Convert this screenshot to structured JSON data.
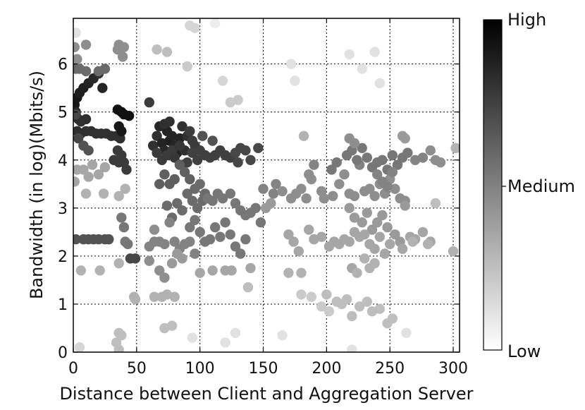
{
  "chart_data": {
    "type": "scatter",
    "xlabel": "Distance between Client and Aggregation Server",
    "ylabel": "Bandwidth (in log)(Mbits/s)",
    "xlim": [
      0,
      305
    ],
    "ylim": [
      0,
      6.95
    ],
    "x_ticks": [
      0,
      50,
      100,
      150,
      200,
      250,
      300
    ],
    "y_ticks": [
      0,
      1,
      2,
      3,
      4,
      5,
      6
    ],
    "grid": true,
    "colorbar": {
      "labels": [
        "High",
        "Medium",
        "Low"
      ],
      "low_color": "#ffffff",
      "high_color": "#000000"
    },
    "points": [
      [
        1,
        5.15,
        0.95
      ],
      [
        3,
        5.3,
        0.95
      ],
      [
        5,
        5.4,
        0.92
      ],
      [
        8,
        5.5,
        0.92
      ],
      [
        12,
        5.6,
        0.9
      ],
      [
        16,
        5.7,
        0.88
      ],
      [
        20,
        5.8,
        0.85
      ],
      [
        23,
        5.5,
        0.9
      ],
      [
        2,
        5.0,
        0.88
      ],
      [
        4,
        4.85,
        0.85
      ],
      [
        6,
        4.8,
        0.85
      ],
      [
        10,
        4.85,
        0.85
      ],
      [
        3,
        4.6,
        0.85
      ],
      [
        6,
        4.55,
        0.85
      ],
      [
        10,
        4.6,
        0.85
      ],
      [
        14,
        4.6,
        0.85
      ],
      [
        18,
        4.55,
        0.85
      ],
      [
        22,
        4.55,
        0.85
      ],
      [
        26,
        4.55,
        0.85
      ],
      [
        30,
        4.5,
        0.85
      ],
      [
        34,
        4.5,
        0.85
      ],
      [
        37,
        4.45,
        0.85
      ],
      [
        35,
        5.05,
        0.98
      ],
      [
        38,
        5.0,
        0.98
      ],
      [
        40,
        4.95,
        0.98
      ],
      [
        44,
        4.92,
        0.98
      ],
      [
        36,
        4.7,
        0.95
      ],
      [
        38,
        4.6,
        0.95
      ],
      [
        2,
        5.9,
        0.6
      ],
      [
        5,
        5.9,
        0.6
      ],
      [
        10,
        5.85,
        0.6
      ],
      [
        20,
        5.85,
        0.6
      ],
      [
        25,
        5.9,
        0.6
      ],
      [
        2,
        4.95,
        0.75
      ],
      [
        4,
        4.45,
        0.75
      ],
      [
        8,
        4.3,
        0.7
      ],
      [
        12,
        4.2,
        0.7
      ],
      [
        3,
        6.1,
        0.45
      ],
      [
        1,
        6.35,
        0.45
      ],
      [
        10,
        6.4,
        0.45
      ],
      [
        35,
        6.3,
        0.45
      ],
      [
        36,
        6.4,
        0.45
      ],
      [
        40,
        6.35,
        0.45
      ],
      [
        39,
        6.15,
        0.45
      ],
      [
        32,
        4.0,
        0.8
      ],
      [
        35,
        4.2,
        0.8
      ],
      [
        38,
        4.1,
        0.8
      ],
      [
        40,
        3.95,
        0.8
      ],
      [
        42,
        3.8,
        0.8
      ],
      [
        36,
        3.95,
        0.8
      ],
      [
        1,
        3.55,
        0.35
      ],
      [
        3,
        3.8,
        0.35
      ],
      [
        8,
        3.8,
        0.35
      ],
      [
        12,
        3.65,
        0.35
      ],
      [
        15,
        3.9,
        0.35
      ],
      [
        20,
        3.7,
        0.35
      ],
      [
        25,
        3.85,
        0.35
      ],
      [
        10,
        3.3,
        0.3
      ],
      [
        24,
        3.3,
        0.3
      ],
      [
        36,
        3.25,
        0.3
      ],
      [
        41,
        3.4,
        0.3
      ],
      [
        38,
        2.8,
        0.55
      ],
      [
        40,
        2.6,
        0.55
      ],
      [
        41,
        2.3,
        0.55
      ],
      [
        43,
        2.25,
        0.55
      ],
      [
        45,
        1.95,
        0.75
      ],
      [
        49,
        1.95,
        0.75
      ],
      [
        2,
        2.35,
        0.7
      ],
      [
        8,
        2.35,
        0.7
      ],
      [
        12,
        2.35,
        0.7
      ],
      [
        16,
        2.35,
        0.7
      ],
      [
        20,
        2.35,
        0.7
      ],
      [
        25,
        2.35,
        0.7
      ],
      [
        28,
        2.35,
        0.7
      ],
      [
        6,
        1.7,
        0.3
      ],
      [
        21,
        1.7,
        0.3
      ],
      [
        36,
        1.85,
        0.3
      ],
      [
        49,
        1.1,
        0.3
      ],
      [
        48,
        1.15,
        0.3
      ],
      [
        36,
        0.4,
        0.25
      ],
      [
        38,
        0.35,
        0.25
      ],
      [
        34,
        0.2,
        0.25
      ],
      [
        36,
        0.05,
        0.25
      ],
      [
        5,
        0.1,
        0.15
      ],
      [
        60,
        5.2,
        0.8
      ],
      [
        63,
        4.3,
        0.85
      ],
      [
        66,
        4.5,
        0.85
      ],
      [
        68,
        4.7,
        0.88
      ],
      [
        70,
        4.35,
        0.9
      ],
      [
        72,
        4.2,
        0.88
      ],
      [
        74,
        4.6,
        0.9
      ],
      [
        76,
        4.4,
        0.92
      ],
      [
        78,
        4.5,
        0.9
      ],
      [
        80,
        4.3,
        0.9
      ],
      [
        82,
        4.15,
        0.9
      ],
      [
        84,
        4.45,
        0.9
      ],
      [
        86,
        4.7,
        0.85
      ],
      [
        88,
        4.2,
        0.85
      ],
      [
        90,
        4.5,
        0.85
      ],
      [
        92,
        4.6,
        0.8
      ],
      [
        94,
        4.4,
        0.8
      ],
      [
        96,
        4.3,
        0.8
      ],
      [
        66,
        4.15,
        0.8
      ],
      [
        70,
        4.0,
        0.8
      ],
      [
        74,
        4.1,
        0.8
      ],
      [
        78,
        4.2,
        0.8
      ],
      [
        72,
        4.75,
        0.85
      ],
      [
        76,
        4.8,
        0.85
      ],
      [
        80,
        4.05,
        0.82
      ],
      [
        84,
        4.3,
        0.82
      ],
      [
        86,
        3.9,
        0.78
      ],
      [
        90,
        3.95,
        0.78
      ],
      [
        94,
        4.15,
        0.78
      ],
      [
        98,
        4.0,
        0.78
      ],
      [
        100,
        4.2,
        0.78
      ],
      [
        104,
        4.1,
        0.78
      ],
      [
        108,
        4.05,
        0.78
      ],
      [
        112,
        4.1,
        0.78
      ],
      [
        116,
        4.2,
        0.78
      ],
      [
        120,
        4.1,
        0.78
      ],
      [
        124,
        4.05,
        0.78
      ],
      [
        128,
        4.15,
        0.75
      ],
      [
        132,
        4.25,
        0.75
      ],
      [
        136,
        4.2,
        0.75
      ],
      [
        140,
        4.0,
        0.75
      ],
      [
        146,
        4.25,
        0.75
      ],
      [
        130,
        3.95,
        0.75
      ],
      [
        102,
        4.5,
        0.7
      ],
      [
        110,
        4.4,
        0.7
      ],
      [
        68,
        3.5,
        0.65
      ],
      [
        72,
        3.7,
        0.65
      ],
      [
        76,
        3.5,
        0.65
      ],
      [
        80,
        3.6,
        0.65
      ],
      [
        84,
        3.9,
        0.65
      ],
      [
        88,
        3.75,
        0.65
      ],
      [
        92,
        3.6,
        0.65
      ],
      [
        96,
        3.4,
        0.6
      ],
      [
        100,
        3.5,
        0.6
      ],
      [
        104,
        3.3,
        0.6
      ],
      [
        90,
        3.3,
        0.6
      ],
      [
        94,
        3.15,
        0.6
      ],
      [
        98,
        3.0,
        0.6
      ],
      [
        102,
        3.15,
        0.6
      ],
      [
        106,
        3.2,
        0.55
      ],
      [
        110,
        3.15,
        0.55
      ],
      [
        114,
        3.3,
        0.55
      ],
      [
        118,
        3.2,
        0.55
      ],
      [
        124,
        3.3,
        0.55
      ],
      [
        128,
        3.1,
        0.55
      ],
      [
        132,
        2.95,
        0.55
      ],
      [
        136,
        2.85,
        0.55
      ],
      [
        140,
        2.9,
        0.55
      ],
      [
        144,
        3.0,
        0.55
      ],
      [
        148,
        2.7,
        0.55
      ],
      [
        86,
        2.95,
        0.6
      ],
      [
        82,
        3.1,
        0.6
      ],
      [
        78,
        2.8,
        0.6
      ],
      [
        74,
        3.05,
        0.6
      ],
      [
        92,
        2.6,
        0.55
      ],
      [
        96,
        2.75,
        0.55
      ],
      [
        100,
        2.5,
        0.55
      ],
      [
        104,
        2.3,
        0.55
      ],
      [
        108,
        2.35,
        0.55
      ],
      [
        112,
        2.6,
        0.55
      ],
      [
        116,
        2.4,
        0.55
      ],
      [
        120,
        2.7,
        0.55
      ],
      [
        124,
        2.45,
        0.55
      ],
      [
        128,
        2.2,
        0.55
      ],
      [
        132,
        2.05,
        0.55
      ],
      [
        136,
        2.35,
        0.55
      ],
      [
        60,
        2.2,
        0.5
      ],
      [
        64,
        2.3,
        0.5
      ],
      [
        68,
        2.3,
        0.5
      ],
      [
        72,
        2.25,
        0.5
      ],
      [
        76,
        2.7,
        0.5
      ],
      [
        80,
        2.3,
        0.5
      ],
      [
        84,
        2.15,
        0.5
      ],
      [
        88,
        2.25,
        0.5
      ],
      [
        92,
        2.3,
        0.5
      ],
      [
        96,
        2.05,
        0.5
      ],
      [
        64,
        2.55,
        0.45
      ],
      [
        60,
        1.9,
        0.45
      ],
      [
        68,
        1.7,
        0.45
      ],
      [
        72,
        1.55,
        0.45
      ],
      [
        78,
        1.85,
        0.4
      ],
      [
        82,
        2.05,
        0.4
      ],
      [
        86,
        1.95,
        0.4
      ],
      [
        100,
        1.65,
        0.35
      ],
      [
        110,
        1.7,
        0.35
      ],
      [
        120,
        1.7,
        0.35
      ],
      [
        125,
        1.7,
        0.35
      ],
      [
        140,
        1.75,
        0.35
      ],
      [
        170,
        1.65,
        0.3
      ],
      [
        180,
        1.65,
        0.3
      ],
      [
        64,
        1.15,
        0.3
      ],
      [
        70,
        1.15,
        0.3
      ],
      [
        74,
        1.2,
        0.3
      ],
      [
        80,
        1.15,
        0.3
      ],
      [
        72,
        0.5,
        0.25
      ],
      [
        78,
        0.55,
        0.25
      ],
      [
        138,
        1.35,
        0.25
      ],
      [
        66,
        6.3,
        0.25
      ],
      [
        74,
        6.25,
        0.25
      ],
      [
        92,
        6.8,
        0.15
      ],
      [
        96,
        6.75,
        0.15
      ],
      [
        90,
        5.95,
        0.2
      ],
      [
        118,
        5.65,
        0.15
      ],
      [
        124,
        5.2,
        0.2
      ],
      [
        130,
        5.25,
        0.2
      ],
      [
        172,
        6.0,
        0.1
      ],
      [
        218,
        6.2,
        0.1
      ],
      [
        238,
        6.25,
        0.1
      ],
      [
        228,
        5.9,
        0.1
      ],
      [
        242,
        5.6,
        0.1
      ],
      [
        175,
        5.65,
        0.1
      ],
      [
        112,
        6.85,
        0.05
      ],
      [
        2,
        6.65,
        0.1
      ],
      [
        94,
        0.3,
        0.1
      ],
      [
        120,
        0.2,
        0.1
      ],
      [
        128,
        0.4,
        0.1
      ],
      [
        165,
        0.35,
        0.1
      ],
      [
        220,
        0.05,
        0.1
      ],
      [
        263,
        0.4,
        0.1
      ],
      [
        150,
        3.4,
        0.5
      ],
      [
        158,
        3.3,
        0.5
      ],
      [
        160,
        3.5,
        0.5
      ],
      [
        165,
        3.35,
        0.45
      ],
      [
        172,
        3.2,
        0.45
      ],
      [
        176,
        3.3,
        0.45
      ],
      [
        180,
        3.4,
        0.45
      ],
      [
        184,
        3.2,
        0.45
      ],
      [
        186,
        3.7,
        0.45
      ],
      [
        188,
        3.6,
        0.45
      ],
      [
        190,
        3.9,
        0.5
      ],
      [
        196,
        3.35,
        0.45
      ],
      [
        198,
        3.2,
        0.45
      ],
      [
        205,
        3.25,
        0.45
      ],
      [
        210,
        3.5,
        0.45
      ],
      [
        214,
        3.7,
        0.45
      ],
      [
        218,
        3.3,
        0.45
      ],
      [
        222,
        3.25,
        0.45
      ],
      [
        226,
        3.9,
        0.5
      ],
      [
        230,
        3.35,
        0.45
      ],
      [
        234,
        3.4,
        0.45
      ],
      [
        238,
        3.25,
        0.45
      ],
      [
        242,
        3.5,
        0.45
      ],
      [
        246,
        3.3,
        0.45
      ],
      [
        250,
        3.6,
        0.45
      ],
      [
        254,
        3.4,
        0.45
      ],
      [
        258,
        3.2,
        0.45
      ],
      [
        262,
        3.15,
        0.45
      ],
      [
        204,
        3.8,
        0.55
      ],
      [
        208,
        3.95,
        0.55
      ],
      [
        216,
        4.1,
        0.55
      ],
      [
        220,
        4.2,
        0.55
      ],
      [
        224,
        4.0,
        0.55
      ],
      [
        228,
        4.25,
        0.55
      ],
      [
        232,
        4.05,
        0.55
      ],
      [
        236,
        3.85,
        0.55
      ],
      [
        240,
        3.95,
        0.55
      ],
      [
        244,
        4.0,
        0.55
      ],
      [
        248,
        3.8,
        0.55
      ],
      [
        252,
        4.1,
        0.55
      ],
      [
        256,
        3.9,
        0.55
      ],
      [
        260,
        4.05,
        0.55
      ],
      [
        264,
        4.15,
        0.55
      ],
      [
        270,
        4.0,
        0.5
      ],
      [
        276,
        4.05,
        0.5
      ],
      [
        282,
        4.2,
        0.45
      ],
      [
        286,
        4.0,
        0.45
      ],
      [
        290,
        3.95,
        0.45
      ],
      [
        240,
        3.7,
        0.5
      ],
      [
        244,
        3.55,
        0.5
      ],
      [
        248,
        3.45,
        0.5
      ],
      [
        252,
        3.75,
        0.5
      ],
      [
        222,
        4.35,
        0.45
      ],
      [
        218,
        4.45,
        0.45
      ],
      [
        260,
        4.5,
        0.4
      ],
      [
        262,
        4.45,
        0.4
      ],
      [
        302,
        4.25,
        0.3
      ],
      [
        182,
        4.5,
        0.3
      ],
      [
        218,
        3.0,
        0.4
      ],
      [
        222,
        2.8,
        0.4
      ],
      [
        228,
        2.7,
        0.4
      ],
      [
        232,
        2.9,
        0.4
      ],
      [
        236,
        2.55,
        0.4
      ],
      [
        240,
        2.7,
        0.4
      ],
      [
        244,
        2.85,
        0.4
      ],
      [
        248,
        2.6,
        0.4
      ],
      [
        254,
        2.45,
        0.4
      ],
      [
        258,
        2.3,
        0.4
      ],
      [
        262,
        3.05,
        0.4
      ],
      [
        266,
        2.4,
        0.35
      ],
      [
        270,
        2.35,
        0.35
      ],
      [
        276,
        2.5,
        0.35
      ],
      [
        282,
        2.3,
        0.35
      ],
      [
        170,
        2.45,
        0.35
      ],
      [
        174,
        2.3,
        0.35
      ],
      [
        178,
        2.1,
        0.35
      ],
      [
        186,
        2.55,
        0.35
      ],
      [
        190,
        2.35,
        0.35
      ],
      [
        196,
        2.4,
        0.35
      ],
      [
        202,
        2.2,
        0.35
      ],
      [
        206,
        2.3,
        0.35
      ],
      [
        210,
        2.25,
        0.35
      ],
      [
        214,
        2.35,
        0.35
      ],
      [
        218,
        2.3,
        0.35
      ],
      [
        222,
        2.5,
        0.35
      ],
      [
        226,
        2.4,
        0.35
      ],
      [
        230,
        2.45,
        0.35
      ],
      [
        234,
        2.25,
        0.35
      ],
      [
        238,
        2.15,
        0.35
      ],
      [
        242,
        2.4,
        0.35
      ],
      [
        246,
        2.05,
        0.35
      ],
      [
        250,
        2.25,
        0.35
      ],
      [
        260,
        2.15,
        0.35
      ],
      [
        268,
        2.3,
        0.3
      ],
      [
        280,
        2.25,
        0.3
      ],
      [
        300,
        2.1,
        0.3
      ],
      [
        152,
        3.0,
        0.4
      ],
      [
        156,
        3.1,
        0.4
      ],
      [
        220,
        1.75,
        0.35
      ],
      [
        224,
        1.65,
        0.3
      ],
      [
        230,
        1.95,
        0.3
      ],
      [
        234,
        1.75,
        0.3
      ],
      [
        238,
        1.85,
        0.3
      ],
      [
        200,
        1.2,
        0.25
      ],
      [
        208,
        1.05,
        0.25
      ],
      [
        212,
        1.0,
        0.25
      ],
      [
        216,
        1.1,
        0.25
      ],
      [
        220,
        0.75,
        0.25
      ],
      [
        226,
        0.95,
        0.25
      ],
      [
        232,
        1.05,
        0.25
      ],
      [
        236,
        0.85,
        0.25
      ],
      [
        242,
        0.9,
        0.25
      ],
      [
        248,
        0.6,
        0.25
      ],
      [
        252,
        0.7,
        0.25
      ],
      [
        180,
        1.2,
        0.2
      ],
      [
        188,
        1.15,
        0.2
      ],
      [
        196,
        0.95,
        0.2
      ],
      [
        202,
        0.85,
        0.2
      ],
      [
        286,
        3.1,
        0.25
      ]
    ]
  }
}
